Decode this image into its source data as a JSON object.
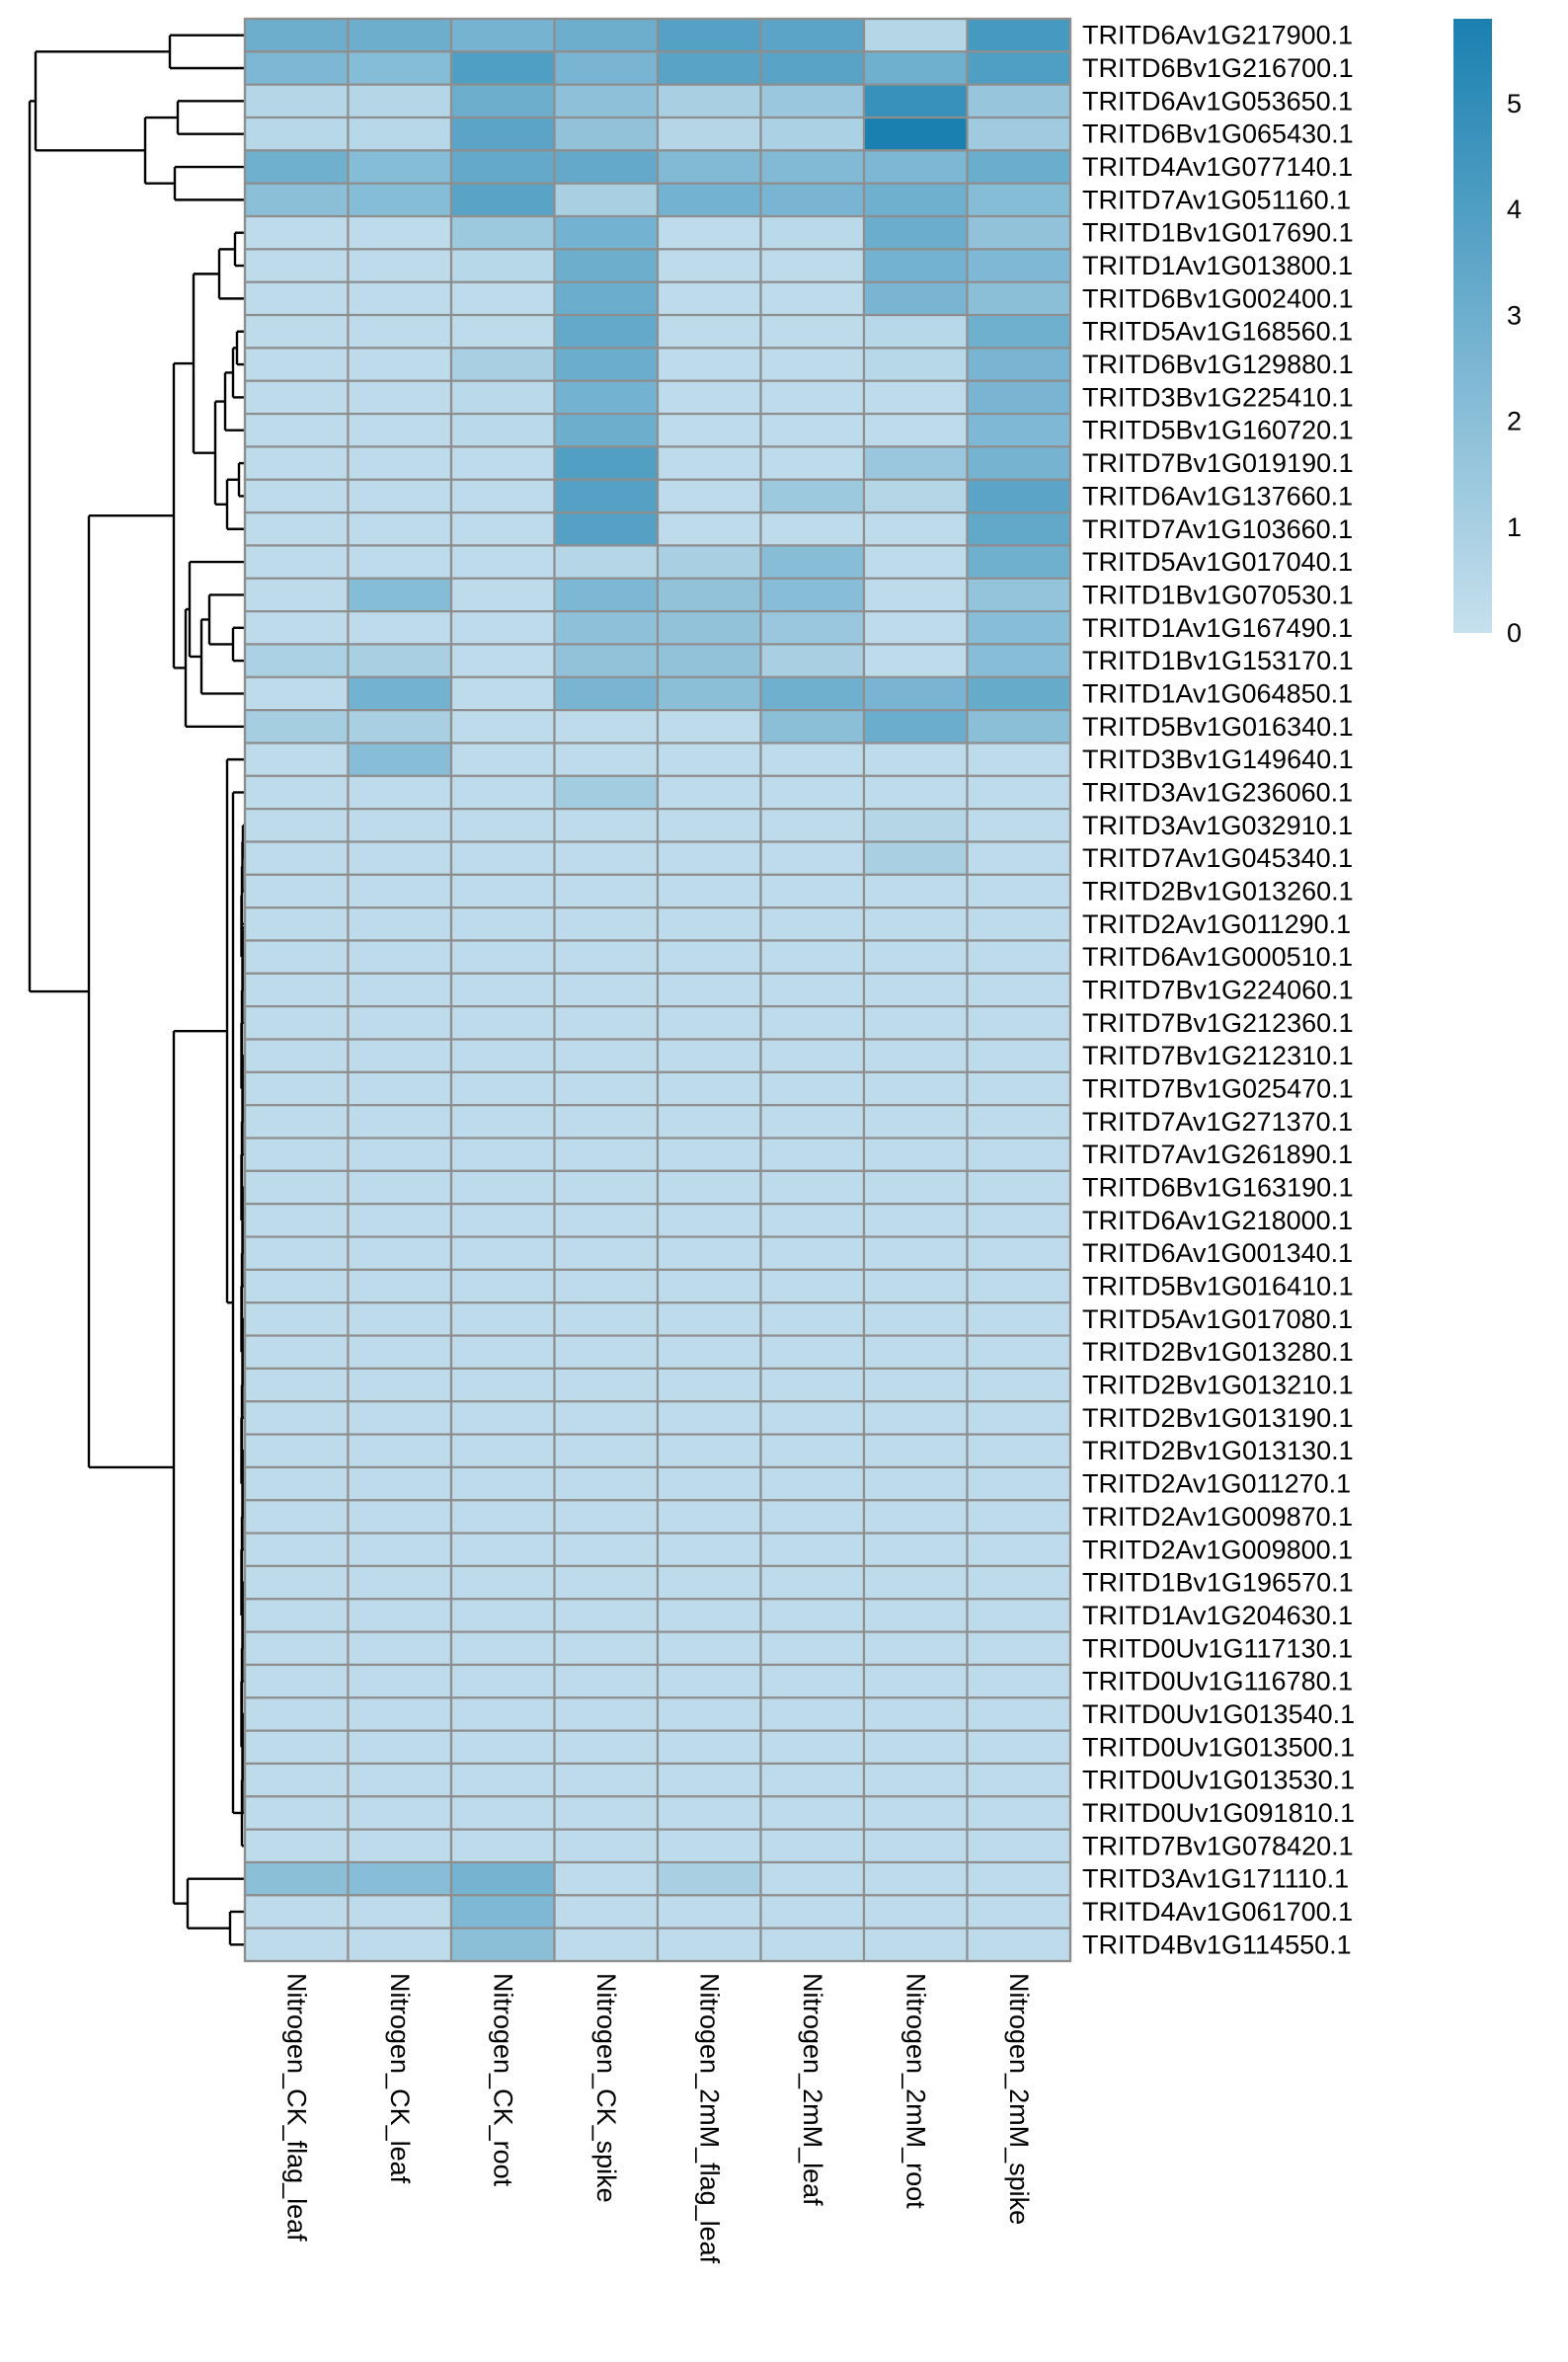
{
  "chart_data": {
    "type": "heatmap",
    "title": "",
    "xlabel": "",
    "ylabel": "",
    "columns": [
      "Nitrogen_CK_flag_leaf",
      "Nitrogen_CK_leaf",
      "Nitrogen_CK_root",
      "Nitrogen_CK_spike",
      "Nitrogen_2mM_flag_leaf",
      "Nitrogen_2mM_leaf",
      "Nitrogen_2mM_root",
      "Nitrogen_2mM_spike"
    ],
    "rows": [
      "TRITD6Av1G217900.1",
      "TRITD6Bv1G216700.1",
      "TRITD6Av1G053650.1",
      "TRITD6Bv1G065430.1",
      "TRITD4Av1G077140.1",
      "TRITD7Av1G051160.1",
      "TRITD1Bv1G017690.1",
      "TRITD1Av1G013800.1",
      "TRITD6Bv1G002400.1",
      "TRITD5Av1G168560.1",
      "TRITD6Bv1G129880.1",
      "TRITD3Bv1G225410.1",
      "TRITD5Bv1G160720.1",
      "TRITD7Bv1G019190.1",
      "TRITD6Av1G137660.1",
      "TRITD7Av1G103660.1",
      "TRITD5Av1G017040.1",
      "TRITD1Bv1G070530.1",
      "TRITD1Av1G167490.1",
      "TRITD1Bv1G153170.1",
      "TRITD1Av1G064850.1",
      "TRITD5Bv1G016340.1",
      "TRITD3Bv1G149640.1",
      "TRITD3Av1G236060.1",
      "TRITD3Av1G032910.1",
      "TRITD7Av1G045340.1",
      "TRITD2Bv1G013260.1",
      "TRITD2Av1G011290.1",
      "TRITD6Av1G000510.1",
      "TRITD7Bv1G224060.1",
      "TRITD7Bv1G212360.1",
      "TRITD7Bv1G212310.1",
      "TRITD7Bv1G025470.1",
      "TRITD7Av1G271370.1",
      "TRITD7Av1G261890.1",
      "TRITD6Bv1G163190.1",
      "TRITD6Av1G218000.1",
      "TRITD6Av1G001340.1",
      "TRITD5Bv1G016410.1",
      "TRITD5Av1G017080.1",
      "TRITD2Bv1G013280.1",
      "TRITD2Bv1G013210.1",
      "TRITD2Bv1G013190.1",
      "TRITD2Bv1G013130.1",
      "TRITD2Av1G011270.1",
      "TRITD2Av1G009870.1",
      "TRITD2Av1G009800.1",
      "TRITD1Bv1G196570.1",
      "TRITD1Av1G204630.1",
      "TRITD0Uv1G117130.1",
      "TRITD0Uv1G116780.1",
      "TRITD0Uv1G013540.1",
      "TRITD0Uv1G013500.1",
      "TRITD0Uv1G013530.1",
      "TRITD0Uv1G091810.1",
      "TRITD7Bv1G078420.1",
      "TRITD3Av1G171110.1",
      "TRITD4Av1G061700.1",
      "TRITD4Bv1G114550.1"
    ],
    "values": [
      [
        3.0,
        3.0,
        2.7,
        3.0,
        3.8,
        3.6,
        0.6,
        4.3
      ],
      [
        2.5,
        2.2,
        4.0,
        2.6,
        3.7,
        3.7,
        2.9,
        4.0
      ],
      [
        0.6,
        0.6,
        3.0,
        1.9,
        1.0,
        1.5,
        4.8,
        1.6
      ],
      [
        0.5,
        0.5,
        3.6,
        1.8,
        0.6,
        0.9,
        5.8,
        1.3
      ],
      [
        2.9,
        2.2,
        3.3,
        3.3,
        2.3,
        2.3,
        2.5,
        3.1
      ],
      [
        2.0,
        2.2,
        3.7,
        1.0,
        2.8,
        2.6,
        2.9,
        2.2
      ],
      [
        0.3,
        0.3,
        1.4,
        2.8,
        0.3,
        0.4,
        3.1,
        1.8
      ],
      [
        0.3,
        0.3,
        0.5,
        3.0,
        0.3,
        0.3,
        2.8,
        2.4
      ],
      [
        0.3,
        0.3,
        0.3,
        3.1,
        0.3,
        0.3,
        2.6,
        2.0
      ],
      [
        0.3,
        0.3,
        0.3,
        3.3,
        0.3,
        0.3,
        0.5,
        2.9
      ],
      [
        0.3,
        0.3,
        1.0,
        3.1,
        0.3,
        0.3,
        0.5,
        2.6
      ],
      [
        0.3,
        0.3,
        0.4,
        2.8,
        0.3,
        0.3,
        0.3,
        2.6
      ],
      [
        0.3,
        0.3,
        0.4,
        3.0,
        0.3,
        0.3,
        0.3,
        2.4
      ],
      [
        0.3,
        0.3,
        0.3,
        3.9,
        0.3,
        0.3,
        1.5,
        2.7
      ],
      [
        0.3,
        0.3,
        0.3,
        3.8,
        0.3,
        1.4,
        0.6,
        3.6
      ],
      [
        0.3,
        0.3,
        0.3,
        3.8,
        0.3,
        0.3,
        0.3,
        3.4
      ],
      [
        0.3,
        0.3,
        0.3,
        0.6,
        1.0,
        2.1,
        0.3,
        2.9
      ],
      [
        0.3,
        2.2,
        0.3,
        2.5,
        1.8,
        2.1,
        0.3,
        1.7
      ],
      [
        0.3,
        0.3,
        0.3,
        1.9,
        1.8,
        1.5,
        0.3,
        2.1
      ],
      [
        0.9,
        1.0,
        0.3,
        1.8,
        1.8,
        1.0,
        0.3,
        2.1
      ],
      [
        0.3,
        2.8,
        0.3,
        2.6,
        2.0,
        2.9,
        2.6,
        3.2
      ],
      [
        1.1,
        1.0,
        0.3,
        0.3,
        0.3,
        2.0,
        3.1,
        2.0
      ],
      [
        0.3,
        2.1,
        0.3,
        0.3,
        0.3,
        0.3,
        0.3,
        0.3
      ],
      [
        0.3,
        0.3,
        0.3,
        1.2,
        0.3,
        0.3,
        0.3,
        0.3
      ],
      [
        0.3,
        0.3,
        0.3,
        0.3,
        0.3,
        0.3,
        0.6,
        0.3
      ],
      [
        0.3,
        0.3,
        0.3,
        0.3,
        0.3,
        0.3,
        1.0,
        0.3
      ],
      [
        0.3,
        0.3,
        0.3,
        0.3,
        0.3,
        0.3,
        0.3,
        0.3
      ],
      [
        0.3,
        0.3,
        0.3,
        0.3,
        0.3,
        0.3,
        0.3,
        0.3
      ],
      [
        0.3,
        0.3,
        0.3,
        0.3,
        0.3,
        0.3,
        0.3,
        0.3
      ],
      [
        0.3,
        0.3,
        0.3,
        0.3,
        0.3,
        0.3,
        0.3,
        0.3
      ],
      [
        0.3,
        0.3,
        0.3,
        0.3,
        0.3,
        0.3,
        0.3,
        0.3
      ],
      [
        0.3,
        0.3,
        0.3,
        0.3,
        0.3,
        0.3,
        0.3,
        0.3
      ],
      [
        0.3,
        0.3,
        0.3,
        0.3,
        0.3,
        0.3,
        0.3,
        0.3
      ],
      [
        0.3,
        0.3,
        0.3,
        0.3,
        0.3,
        0.3,
        0.3,
        0.3
      ],
      [
        0.3,
        0.3,
        0.3,
        0.3,
        0.3,
        0.3,
        0.3,
        0.3
      ],
      [
        0.3,
        0.3,
        0.3,
        0.3,
        0.3,
        0.3,
        0.3,
        0.3
      ],
      [
        0.3,
        0.3,
        0.3,
        0.3,
        0.3,
        0.3,
        0.3,
        0.3
      ],
      [
        0.3,
        0.3,
        0.3,
        0.3,
        0.3,
        0.3,
        0.3,
        0.3
      ],
      [
        0.3,
        0.3,
        0.3,
        0.3,
        0.3,
        0.3,
        0.3,
        0.3
      ],
      [
        0.3,
        0.3,
        0.3,
        0.3,
        0.3,
        0.3,
        0.3,
        0.3
      ],
      [
        0.3,
        0.3,
        0.3,
        0.3,
        0.3,
        0.3,
        0.3,
        0.3
      ],
      [
        0.3,
        0.3,
        0.3,
        0.3,
        0.3,
        0.3,
        0.3,
        0.3
      ],
      [
        0.3,
        0.3,
        0.3,
        0.3,
        0.3,
        0.3,
        0.3,
        0.3
      ],
      [
        0.3,
        0.3,
        0.3,
        0.3,
        0.3,
        0.3,
        0.3,
        0.3
      ],
      [
        0.3,
        0.3,
        0.3,
        0.3,
        0.3,
        0.3,
        0.3,
        0.3
      ],
      [
        0.3,
        0.3,
        0.3,
        0.3,
        0.3,
        0.3,
        0.3,
        0.3
      ],
      [
        0.3,
        0.3,
        0.3,
        0.3,
        0.3,
        0.3,
        0.3,
        0.3
      ],
      [
        0.3,
        0.3,
        0.3,
        0.3,
        0.3,
        0.3,
        0.3,
        0.3
      ],
      [
        0.3,
        0.3,
        0.3,
        0.3,
        0.3,
        0.3,
        0.3,
        0.3
      ],
      [
        0.3,
        0.3,
        0.3,
        0.3,
        0.3,
        0.3,
        0.3,
        0.3
      ],
      [
        0.3,
        0.3,
        0.3,
        0.3,
        0.3,
        0.3,
        0.3,
        0.3
      ],
      [
        0.3,
        0.3,
        0.3,
        0.3,
        0.3,
        0.3,
        0.3,
        0.3
      ],
      [
        0.3,
        0.3,
        0.3,
        0.3,
        0.3,
        0.3,
        0.3,
        0.3
      ],
      [
        0.3,
        0.3,
        0.3,
        0.3,
        0.3,
        0.3,
        0.3,
        0.3
      ],
      [
        0.3,
        0.3,
        0.3,
        0.3,
        0.3,
        0.3,
        0.3,
        0.3
      ],
      [
        0.3,
        0.3,
        0.3,
        0.3,
        0.3,
        0.3,
        0.3,
        0.3
      ],
      [
        2.0,
        2.1,
        2.7,
        0.3,
        1.0,
        0.3,
        0.3,
        0.3
      ],
      [
        0.3,
        0.3,
        2.4,
        0.3,
        0.3,
        0.3,
        0.3,
        0.3
      ],
      [
        0.3,
        0.3,
        2.0,
        0.3,
        0.3,
        0.3,
        0.3,
        0.3
      ]
    ],
    "colorbar": {
      "ticks": [
        0,
        1,
        2,
        3,
        4,
        5
      ],
      "range": [
        0,
        5.8
      ],
      "color_low": "#c6e0ed",
      "color_high": "#1a80b0"
    },
    "row_dendrogram": "left",
    "legend_position": "right"
  }
}
